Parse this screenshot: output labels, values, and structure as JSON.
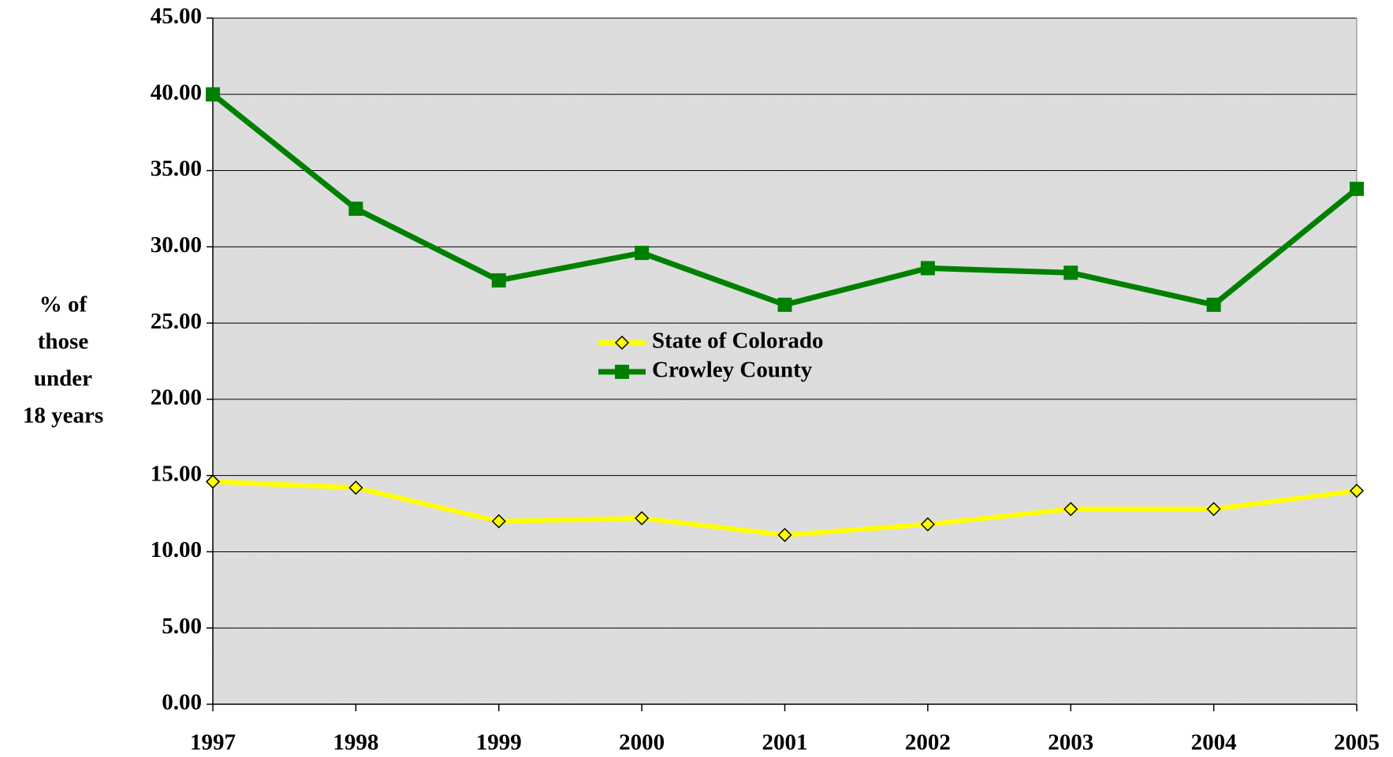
{
  "chart_data": {
    "type": "line",
    "ylabel": [
      "% of",
      "those",
      "under",
      "18 years"
    ],
    "categories": [
      "1997",
      "1998",
      "1999",
      "2000",
      "2001",
      "2002",
      "2003",
      "2004",
      "2005"
    ],
    "series": [
      {
        "name": "State of Colorado",
        "color": "#ffff00",
        "marker": "diamond",
        "values": [
          14.6,
          14.2,
          12.0,
          12.2,
          11.1,
          11.8,
          12.8,
          12.8,
          14.0
        ]
      },
      {
        "name": "Crowley County",
        "color": "#008000",
        "marker": "square",
        "values": [
          40.0,
          32.5,
          27.8,
          29.6,
          26.2,
          28.6,
          28.3,
          26.2,
          33.8
        ]
      }
    ],
    "ylim": [
      0,
      45
    ],
    "yticks": [
      {
        "value": 0,
        "label": "0.00"
      },
      {
        "value": 5,
        "label": "5.00"
      },
      {
        "value": 10,
        "label": "10.00"
      },
      {
        "value": 15,
        "label": "15.00"
      },
      {
        "value": 20,
        "label": "20.00"
      },
      {
        "value": 25,
        "label": "25.00"
      },
      {
        "value": 30,
        "label": "30.00"
      },
      {
        "value": 35,
        "label": "35.00"
      },
      {
        "value": 40,
        "label": "40.00"
      },
      {
        "value": 45,
        "label": "45.00"
      }
    ],
    "grid": true,
    "legend": "center"
  }
}
